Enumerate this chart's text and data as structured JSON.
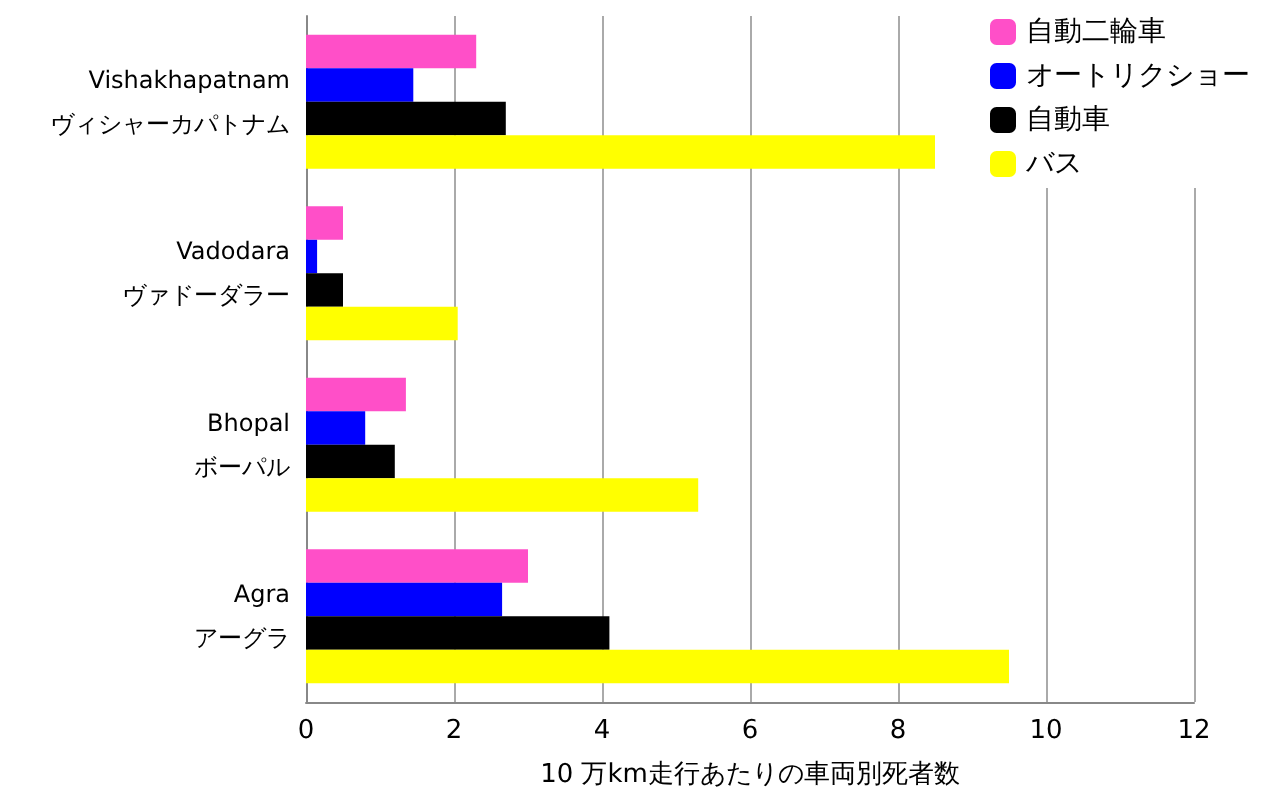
{
  "chart_data": {
    "type": "bar",
    "orientation": "horizontal",
    "xlabel": "10 万km走行あたりの車両別死者数",
    "categories": [
      "Vishakhapatnam\nヴィシャーカパトナム",
      "Vadodara\nヴァドーダラー",
      "Bhopal\nボーパル",
      "Agra\nアーグラ"
    ],
    "series": [
      {
        "name": "自動二輪車",
        "color": "#ff4fc8",
        "values": [
          2.3,
          0.5,
          1.35,
          3.0
        ]
      },
      {
        "name": "オートリクショー",
        "color": "#0000ff",
        "values": [
          1.45,
          0.15,
          0.8,
          2.65
        ]
      },
      {
        "name": "自動車",
        "color": "#000000",
        "values": [
          2.7,
          0.5,
          1.2,
          4.1
        ]
      },
      {
        "name": "バス",
        "color": "#ffff00",
        "values": [
          8.5,
          2.05,
          5.3,
          9.5
        ]
      }
    ],
    "xlim": [
      0,
      12
    ],
    "xticks": [
      0,
      2,
      4,
      6,
      8,
      10,
      12
    ],
    "grid": "x",
    "legend": "top right"
  }
}
